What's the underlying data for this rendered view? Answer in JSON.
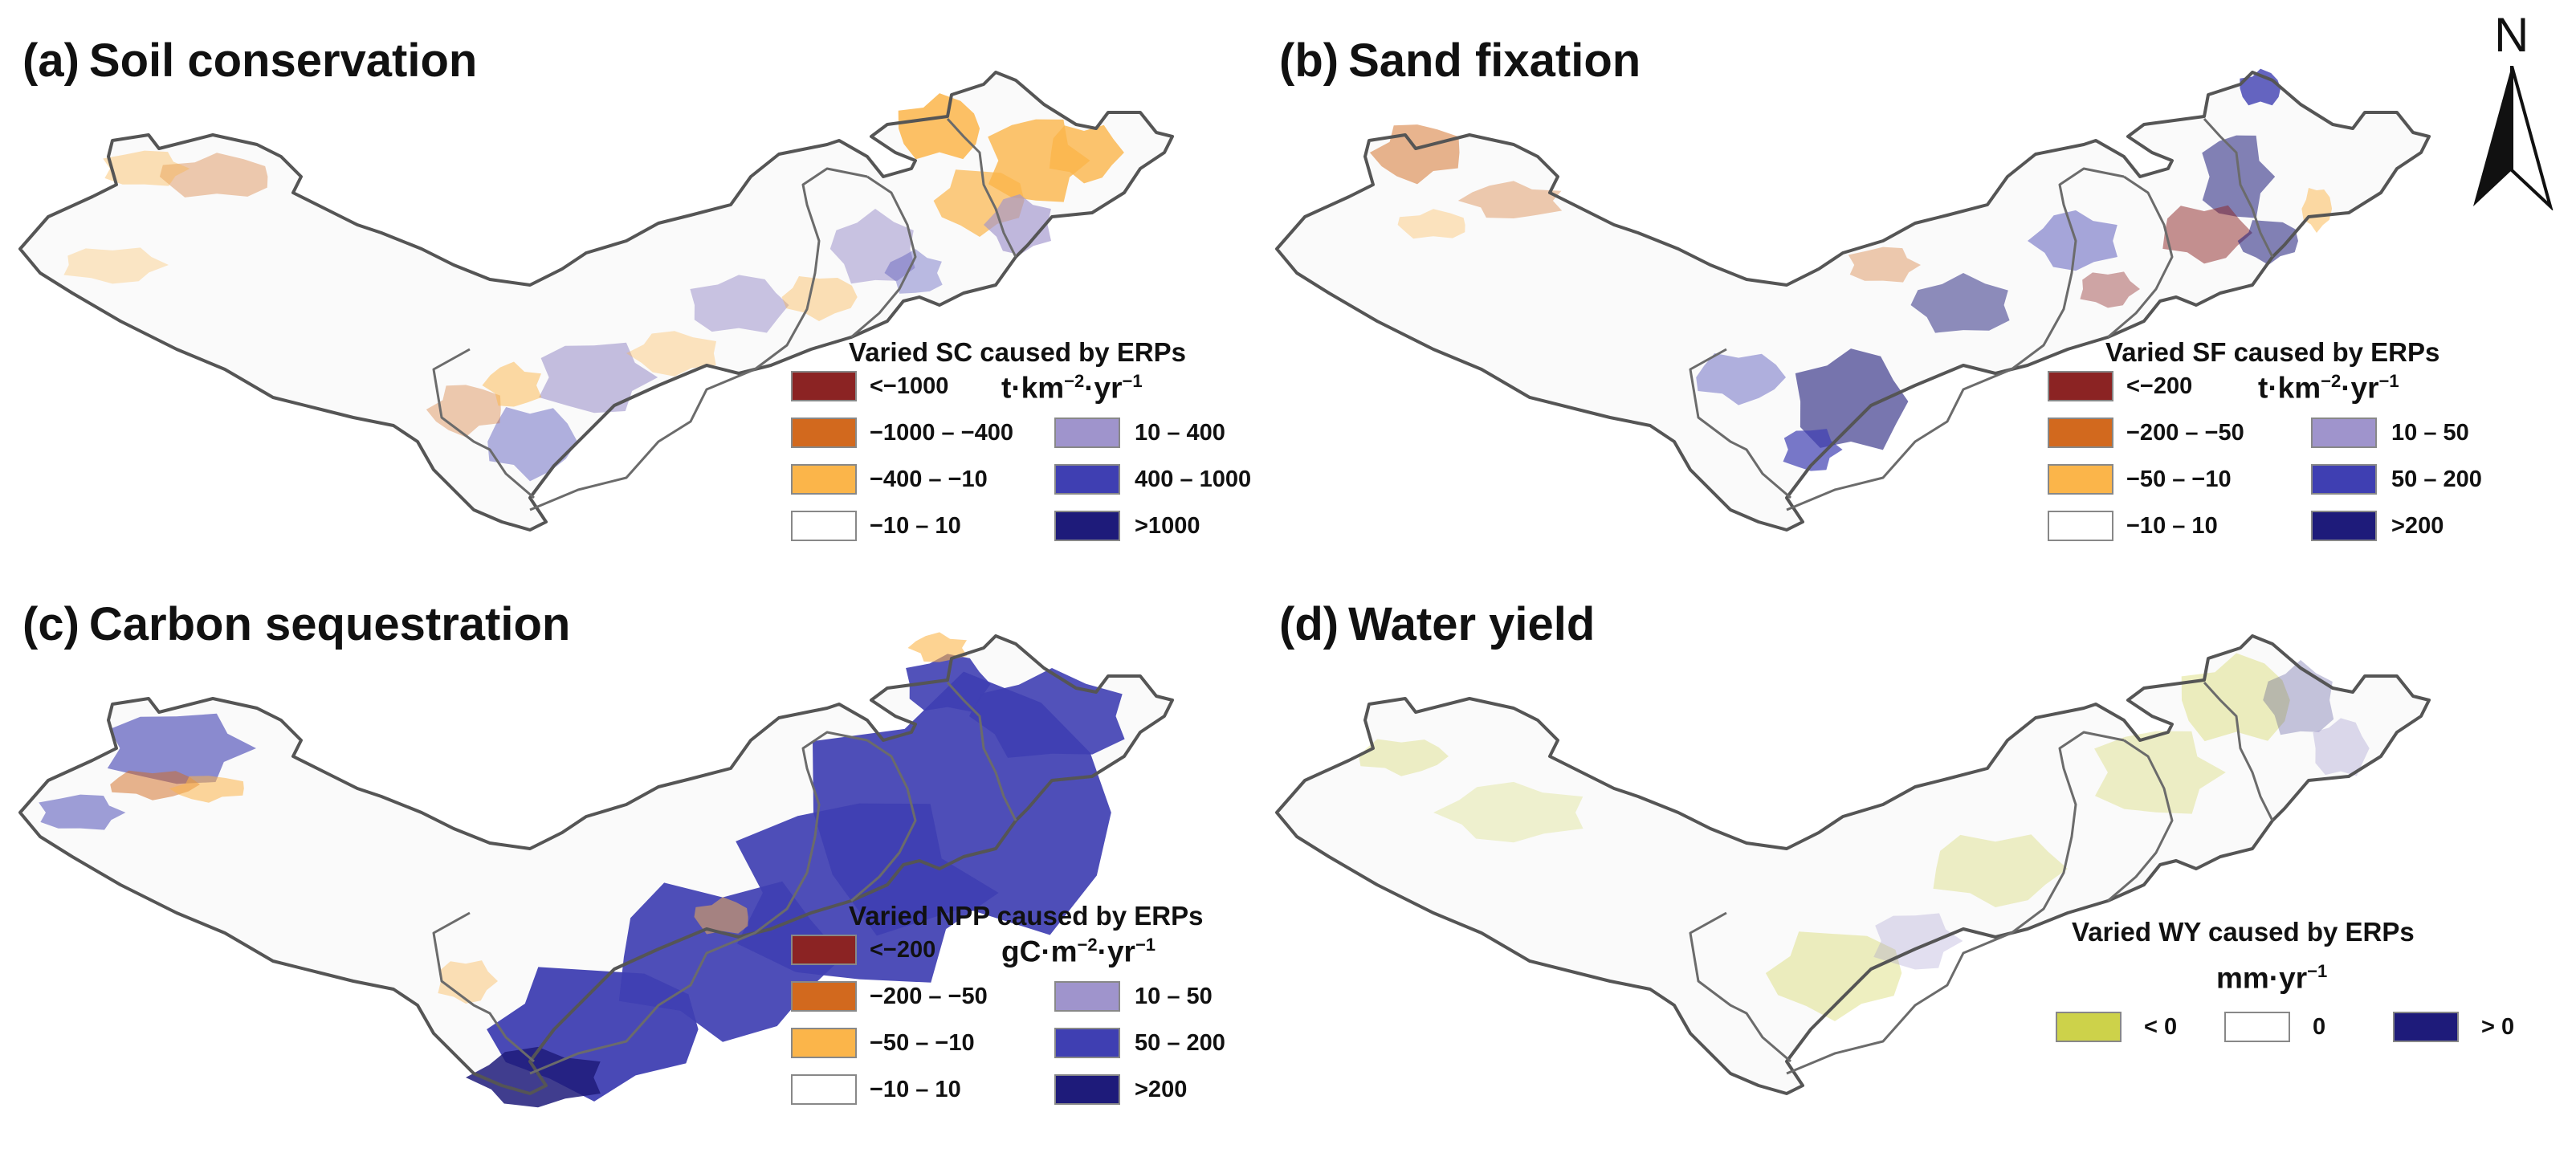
{
  "panels": {
    "a": {
      "letter": "(a)",
      "title": "Soil conservation",
      "legend_title": "Varied SC caused by ERPs",
      "unit_parts": [
        "t·km",
        "−2",
        "·yr",
        "−1"
      ],
      "left_items": [
        {
          "label": "<−1000",
          "color": "#8b2323"
        },
        {
          "label": "−1000 – −400",
          "color": "#d2691e"
        },
        {
          "label": "−400 – −10",
          "color": "#fbb54a"
        },
        {
          "label": "−10 – 10",
          "color": "#ffffff"
        }
      ],
      "right_items": [
        {
          "label": "10 – 400",
          "color": "#9f94cc"
        },
        {
          "label": "400 – 1000",
          "color": "#3f3fb2"
        },
        {
          "label": ">1000",
          "color": "#1e1b7a"
        }
      ]
    },
    "b": {
      "letter": "(b)",
      "title": "Sand fixation",
      "legend_title": "Varied SF caused by ERPs",
      "unit_parts": [
        "t·km",
        "−2",
        "·yr",
        "−1"
      ],
      "left_items": [
        {
          "label": "<−200",
          "color": "#8b2323"
        },
        {
          "label": "−200 – −50",
          "color": "#d2691e"
        },
        {
          "label": "−50 – −10",
          "color": "#fbb54a"
        },
        {
          "label": "−10 – 10",
          "color": "#ffffff"
        }
      ],
      "right_items": [
        {
          "label": "10 – 50",
          "color": "#9f94cc"
        },
        {
          "label": "50 – 200",
          "color": "#3f3fb2"
        },
        {
          "label": ">200",
          "color": "#1e1b7a"
        }
      ]
    },
    "c": {
      "letter": "(c)",
      "title": "Carbon sequestration",
      "legend_title": "Varied NPP caused by ERPs",
      "unit_parts": [
        "gC·m",
        "−2",
        "·yr",
        "−1"
      ],
      "left_items": [
        {
          "label": "<−200",
          "color": "#8b2323"
        },
        {
          "label": "−200 – −50",
          "color": "#d2691e"
        },
        {
          "label": "−50 – −10",
          "color": "#fbb54a"
        },
        {
          "label": "−10 – 10",
          "color": "#ffffff"
        }
      ],
      "right_items": [
        {
          "label": "10 – 50",
          "color": "#9f94cc"
        },
        {
          "label": "50 – 200",
          "color": "#3f3fb2"
        },
        {
          "label": ">200",
          "color": "#1e1b7a"
        }
      ]
    },
    "d": {
      "letter": "(d)",
      "title": "Water yield",
      "legend_title": "Varied WY caused by ERPs",
      "unit_parts": [
        "mm·yr",
        "−1",
        "",
        ""
      ],
      "items": [
        {
          "label": "< 0",
          "color": "#cdd24a"
        },
        {
          "label": "0",
          "color": "#ffffff"
        },
        {
          "label": "> 0",
          "color": "#1e1b7a"
        }
      ]
    }
  },
  "north_label": "N",
  "map_colors": {
    "outline": "#555555",
    "inner_boundary": "#6b6b6b"
  }
}
